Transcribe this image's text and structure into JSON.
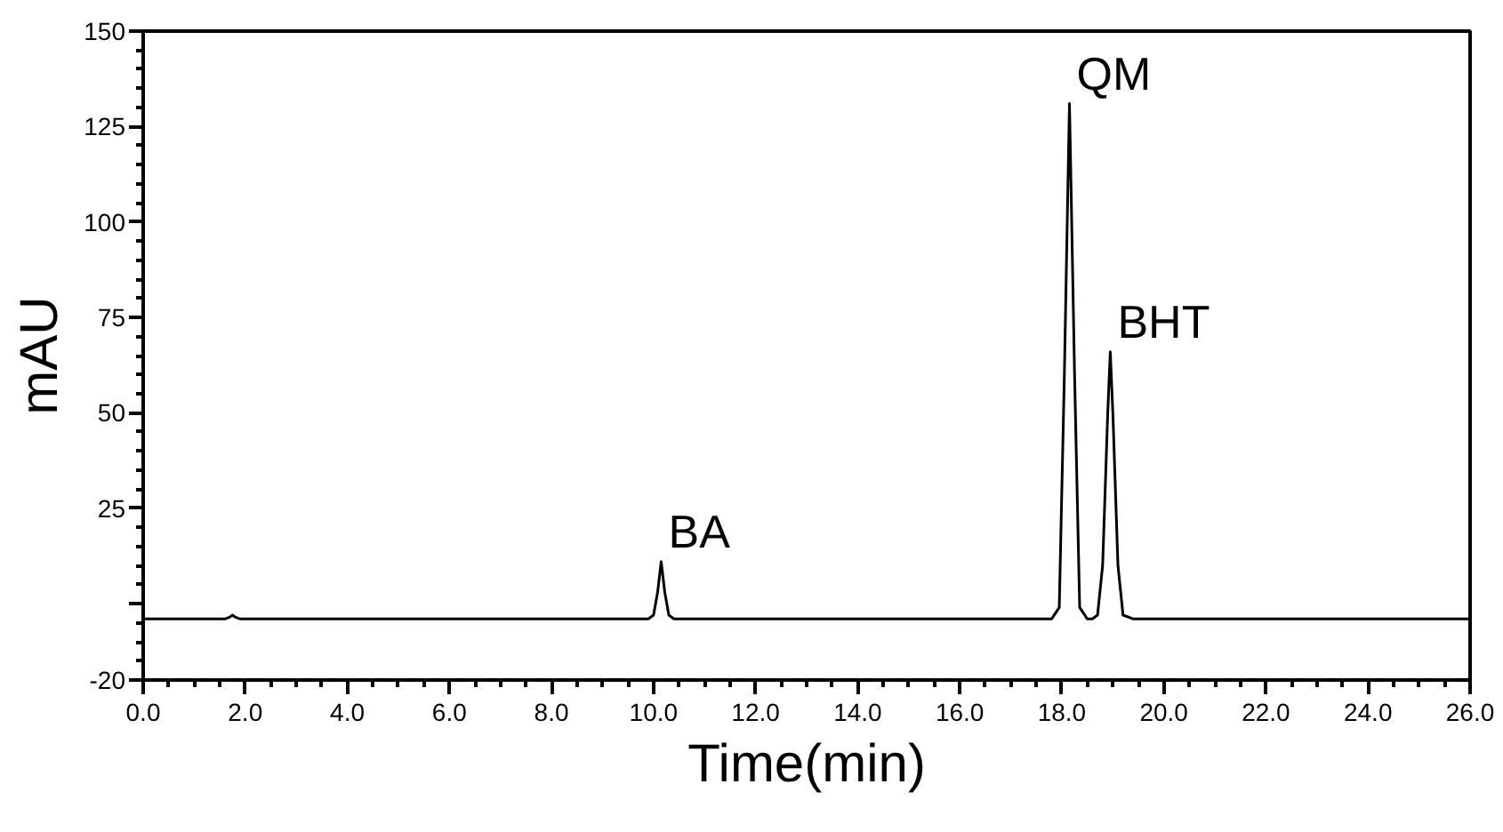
{
  "chart_data": {
    "type": "line",
    "xlabel": "Time(min)",
    "ylabel": "mAU",
    "xlim": [
      0,
      26
    ],
    "ylim": [
      -20,
      150
    ],
    "xticks": [
      {
        "value": 0,
        "label": "0.0"
      },
      {
        "value": 2,
        "label": "2.0"
      },
      {
        "value": 4,
        "label": "4.0"
      },
      {
        "value": 6,
        "label": "6.0"
      },
      {
        "value": 8,
        "label": "8.0"
      },
      {
        "value": 10,
        "label": "10.0"
      },
      {
        "value": 12,
        "label": "12.0"
      },
      {
        "value": 14,
        "label": "14.0"
      },
      {
        "value": 16,
        "label": "16.0"
      },
      {
        "value": 18,
        "label": "18.0"
      },
      {
        "value": 20,
        "label": "20.0"
      },
      {
        "value": 22,
        "label": "22.0"
      },
      {
        "value": 24,
        "label": "24.0"
      },
      {
        "value": 26,
        "label": "26.0"
      }
    ],
    "yticks": [
      -20,
      {
        "value": 0,
        "label": null
      },
      25,
      50,
      75,
      100,
      125,
      150
    ],
    "grid": false,
    "marker": "none",
    "line_style": "solid",
    "series": [
      {
        "color": "#000000",
        "x": [
          0,
          1.6,
          1.7,
          1.75,
          1.8,
          1.9,
          4,
          8,
          9.9,
          10.0,
          10.08,
          10.15,
          10.22,
          10.3,
          10.4,
          12,
          16,
          17.8,
          17.95,
          18.05,
          18.15,
          18.25,
          18.35,
          18.5,
          18.6,
          18.7,
          18.8,
          18.9,
          18.95,
          19.0,
          19.1,
          19.2,
          19.4,
          22,
          26
        ],
        "values": [
          -4,
          -4,
          -3.5,
          -3,
          -3.5,
          -4,
          -4,
          -4,
          -4,
          -3,
          3,
          11,
          3,
          -3,
          -4,
          -4,
          -4,
          -4,
          -1,
          60,
          131,
          60,
          -1,
          -4,
          -4,
          -3,
          10,
          50,
          66,
          50,
          10,
          -3,
          -4,
          -4,
          -4
        ]
      }
    ],
    "annotations": [
      {
        "text": "BA",
        "x": 10.15,
        "y": 11
      },
      {
        "text": "QM",
        "x": 18.15,
        "y": 131
      },
      {
        "text": "BHT",
        "x": 18.95,
        "y": 66
      }
    ]
  }
}
